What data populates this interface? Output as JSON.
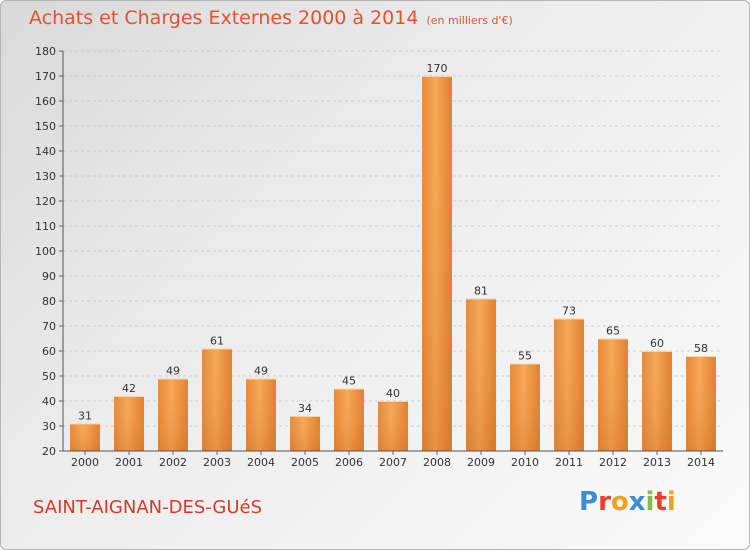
{
  "header": {
    "title": "Achats et Charges Externes 2000 à 2014",
    "unit": "(en milliers d'€)"
  },
  "footer": {
    "town": "SAINT-AIGNAN-DES-GUéS",
    "logo_text": "Proxiti",
    "logo_colors": [
      "#3a8fd4",
      "#e8412b",
      "#f0a21a",
      "#3a8fd4",
      "#7cc04a",
      "#e8412b",
      "#f0a21a"
    ]
  },
  "colors": {
    "title": "#e0542a",
    "bar_light": "#f6a95a",
    "bar_dark": "#d9782a",
    "axis_text": "#333333",
    "grid": "#cccccc"
  },
  "chart_data": {
    "type": "bar",
    "categories": [
      "2000",
      "2001",
      "2002",
      "2003",
      "2004",
      "2005",
      "2006",
      "2007",
      "2008",
      "2009",
      "2010",
      "2011",
      "2012",
      "2013",
      "2014"
    ],
    "values": [
      31,
      42,
      49,
      61,
      49,
      34,
      45,
      40,
      170,
      81,
      55,
      73,
      65,
      60,
      58
    ],
    "title": "Achats et Charges Externes 2000 à 2014",
    "xlabel": "",
    "ylabel": "",
    "ylim": [
      20,
      180
    ],
    "yticks": [
      20,
      30,
      40,
      50,
      60,
      70,
      80,
      90,
      100,
      110,
      120,
      130,
      140,
      150,
      160,
      170,
      180
    ],
    "grid": true,
    "data_labels": true
  }
}
